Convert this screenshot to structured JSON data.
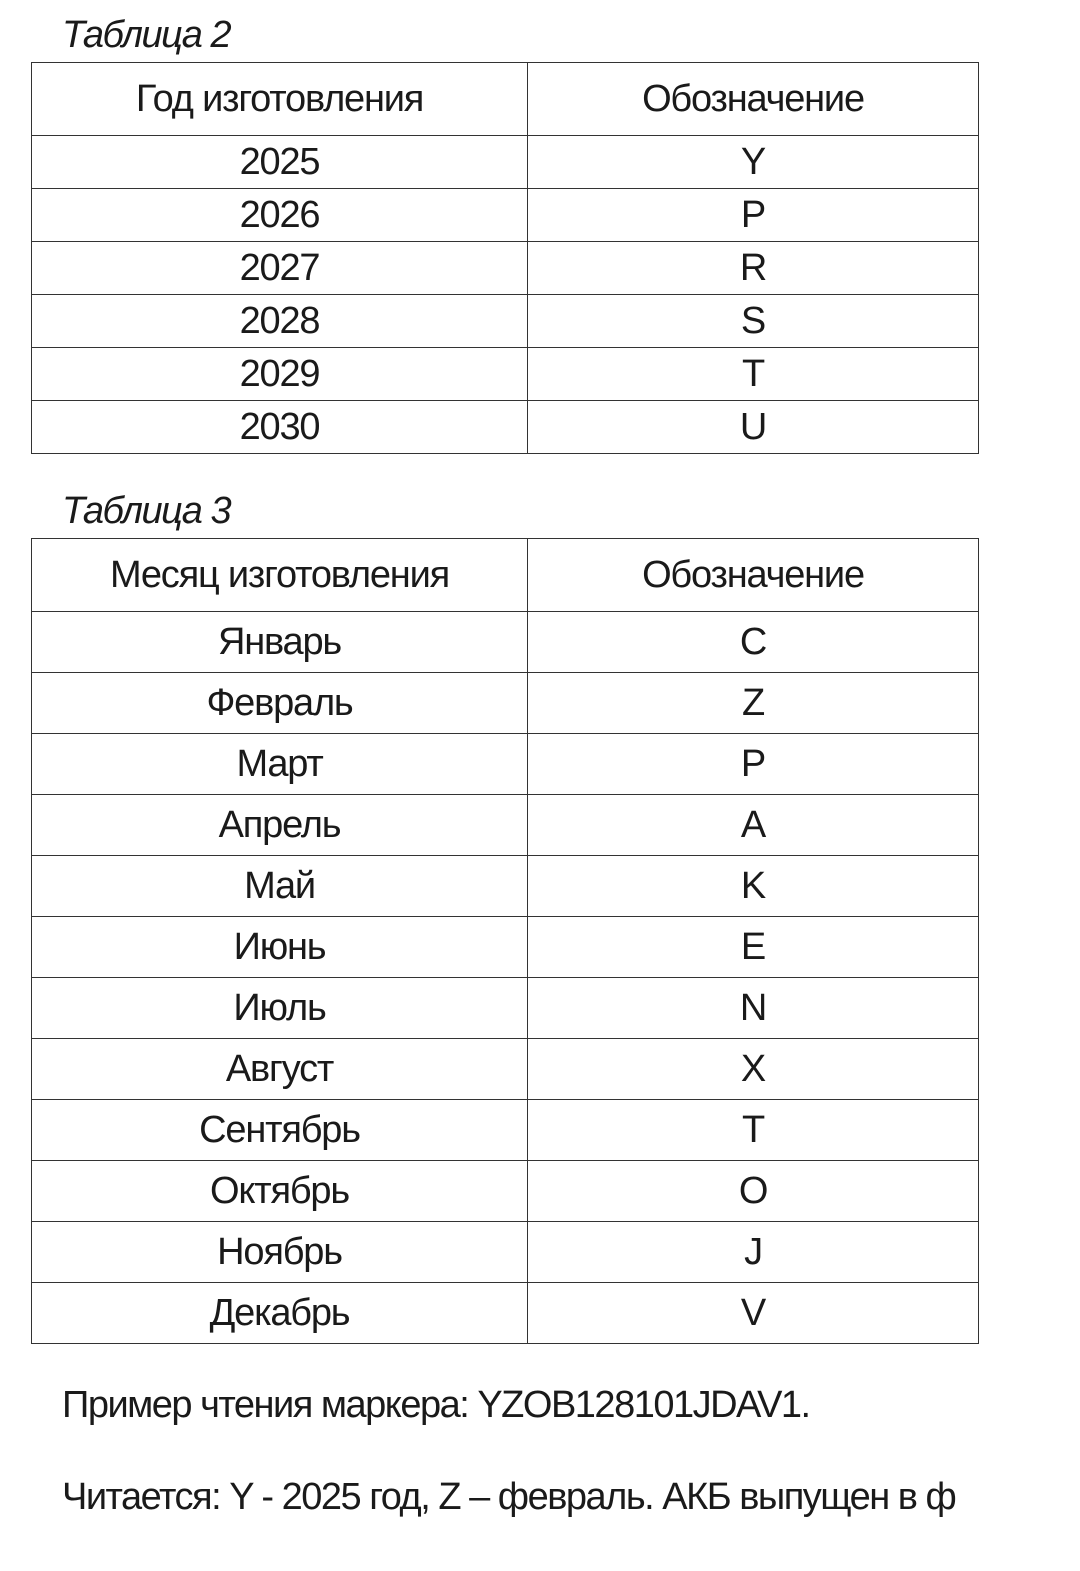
{
  "tables": [
    {
      "caption": "Таблица 2",
      "header": [
        "Год изготовления",
        "Обозначение"
      ],
      "rows": [
        [
          "2025",
          "Y"
        ],
        [
          "2026",
          "P"
        ],
        [
          "2027",
          "R"
        ],
        [
          "2028",
          "S"
        ],
        [
          "2029",
          "T"
        ],
        [
          "2030",
          "U"
        ]
      ]
    },
    {
      "caption": "Таблица 3",
      "header": [
        "Месяц изготовления",
        "Обозначение"
      ],
      "rows": [
        [
          "Январь",
          "C"
        ],
        [
          "Февраль",
          "Z"
        ],
        [
          "Март",
          "P"
        ],
        [
          "Апрель",
          "A"
        ],
        [
          "Май",
          "K"
        ],
        [
          "Июнь",
          "E"
        ],
        [
          "Июль",
          "N"
        ],
        [
          "Август",
          "X"
        ],
        [
          "Сентябрь",
          "T"
        ],
        [
          "Октябрь",
          "O"
        ],
        [
          "Ноябрь",
          "J"
        ],
        [
          "Декабрь",
          "V"
        ]
      ]
    }
  ],
  "paragraphs": [
    "Пример чтения маркера: YZOB128101JDAV1.",
    "Читается: Y - 2025 год, Z – февраль. АКБ выпущен в ф"
  ]
}
